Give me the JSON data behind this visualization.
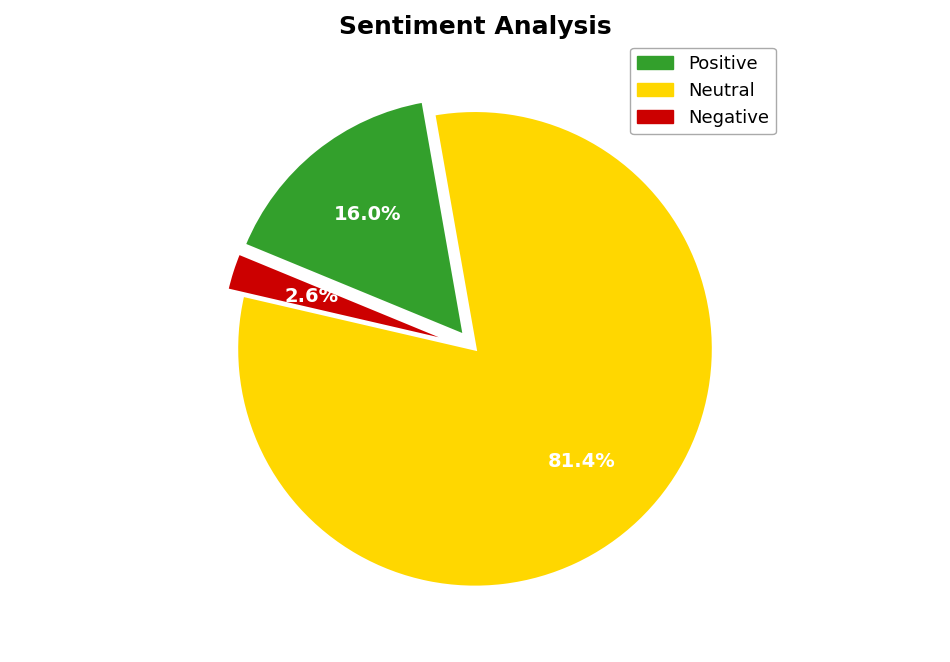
{
  "title": "Sentiment Analysis",
  "title_fontsize": 18,
  "labels": [
    "Neutral",
    "Negative",
    "Positive"
  ],
  "values": [
    81.4,
    2.6,
    16.0
  ],
  "colors": [
    "#ffd700",
    "#cc0000",
    "#33a02c"
  ],
  "explode": [
    0.0,
    0.07,
    0.07
  ],
  "legend_labels": [
    "Positive",
    "Neutral",
    "Negative"
  ],
  "legend_colors": [
    "#33a02c",
    "#ffd700",
    "#cc0000"
  ],
  "legend_loc": "upper right",
  "startangle": 100,
  "text_color": "white",
  "text_fontsize": 14,
  "text_fontweight": "bold",
  "background_color": "#ffffff",
  "wedge_edgecolor": "white",
  "wedge_linewidth": 2.5,
  "pctdistance": 0.65
}
